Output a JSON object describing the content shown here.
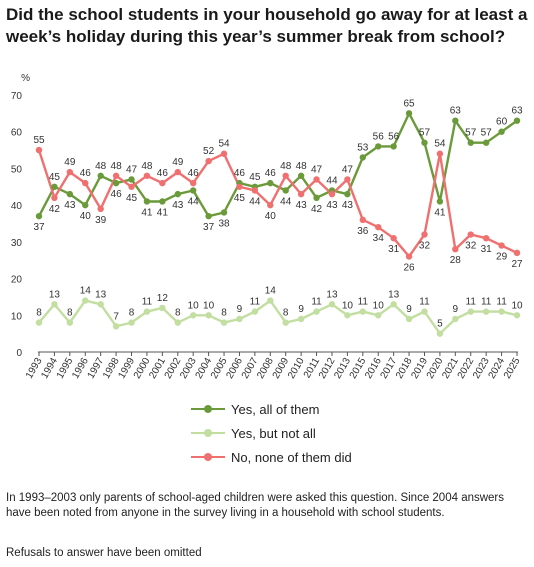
{
  "title": "Did the school students in your household go away for at least a week’s holiday during this year’s summer break from school?",
  "chart_data": {
    "type": "line",
    "x": [
      "1993",
      "1994",
      "1995",
      "1996",
      "1997",
      "1998",
      "1999",
      "2000",
      "2001",
      "2002",
      "2003",
      "2004",
      "2005",
      "2006",
      "2007",
      "2008",
      "2009",
      "2010",
      "2011",
      "2012",
      "2013",
      "2015",
      "2016",
      "2017",
      "2018",
      "2019",
      "2020",
      "2021",
      "2022",
      "2023",
      "2024",
      "2025"
    ],
    "ylabel": "%",
    "ylim": [
      0,
      70
    ],
    "yticks": [
      "0",
      "10",
      "20",
      "30",
      "40",
      "50",
      "60",
      "70"
    ],
    "grid": false,
    "legend_position": "bottom",
    "series": [
      {
        "name": "Yes, all of them",
        "color": "#6a9a3a",
        "values": [
          37,
          45,
          43,
          40,
          48,
          46,
          47,
          41,
          41,
          43,
          44,
          37,
          38,
          46,
          45,
          46,
          44,
          48,
          42,
          44,
          43,
          53,
          56,
          56,
          65,
          57,
          41,
          63,
          57,
          57,
          60,
          63
        ]
      },
      {
        "name": "Yes, but not all",
        "color": "#c2dea0",
        "values": [
          8,
          13,
          8,
          14,
          13,
          7,
          8,
          11,
          12,
          8,
          10,
          10,
          8,
          9,
          11,
          14,
          8,
          9,
          11,
          13,
          10,
          11,
          10,
          13,
          9,
          11,
          5,
          9,
          11,
          11,
          11,
          10
        ]
      },
      {
        "name": "No, none of them did",
        "color": "#f07070",
        "values": [
          55,
          42,
          49,
          46,
          39,
          48,
          45,
          48,
          46,
          49,
          46,
          52,
          54,
          45,
          44,
          40,
          48,
          43,
          47,
          43,
          47,
          36,
          34,
          31,
          26,
          32,
          54,
          28,
          32,
          31,
          29,
          27
        ]
      }
    ]
  },
  "note": "In 1993–2003 only parents of school-aged children were asked this question. Since 2004 answers have been noted from anyone in the survey living in a household with school students.",
  "note2": "Refusals to answer have been omitted"
}
